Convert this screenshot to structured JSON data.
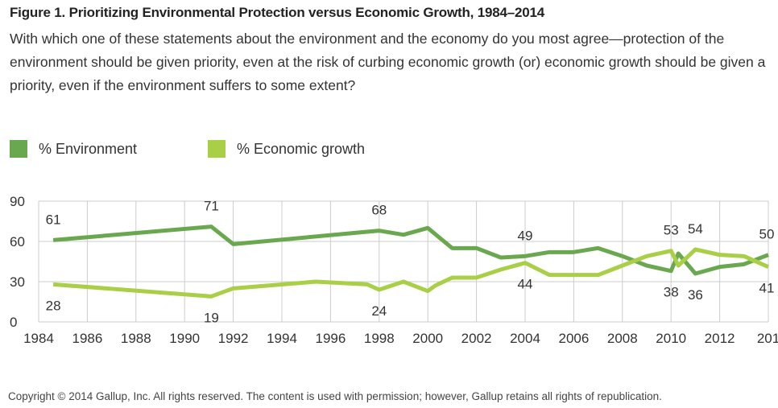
{
  "title": "Figure 1. Prioritizing Environmental Protection versus Economic Growth, 1984–2014",
  "question": "With which one of these statements about the environment and the economy do you most agree—protection of the environment should be given priority, even at the risk of curbing economic growth (or) economic growth should be given a priority, even if the environment suffers to some extent?",
  "copyright": "Copyright © 2014 Gallup, Inc. All rights reserved. The content is used with permission; however, Gallup retains all rights of republication.",
  "chart_data": {
    "type": "line",
    "xlim": [
      1984,
      2014
    ],
    "ylim": [
      0,
      90
    ],
    "x_ticks": [
      "1984",
      "1986",
      "1988",
      "1990",
      "1992",
      "1994",
      "1996",
      "1998",
      "2000",
      "2002",
      "2004",
      "2006",
      "2008",
      "2010",
      "2012",
      "201"
    ],
    "y_ticks": [
      "0",
      "30",
      "60",
      "90"
    ],
    "grid": true,
    "legend": "top-left",
    "series": [
      {
        "name": "% Environment",
        "color": "#6aa84f",
        "x": [
          1984.6,
          1991.1,
          1992,
          1998,
          1999,
          2000,
          2001,
          2002,
          2003,
          2004,
          2005,
          2006,
          2007,
          2008,
          2009,
          2010,
          2010.3,
          2011,
          2012,
          2013,
          2014
        ],
        "y": [
          61,
          71,
          58,
          68,
          65,
          70,
          55,
          55,
          48,
          49,
          52,
          52,
          55,
          49,
          42,
          38,
          51,
          36,
          41,
          43,
          50
        ],
        "labels": [
          {
            "x": 1984.6,
            "y": 61,
            "text": "61",
            "pos": "above"
          },
          {
            "x": 1991.1,
            "y": 71,
            "text": "71",
            "pos": "above"
          },
          {
            "x": 1998,
            "y": 68,
            "text": "68",
            "pos": "above"
          },
          {
            "x": 2004,
            "y": 49,
            "text": "49",
            "pos": "above"
          },
          {
            "x": 2010,
            "y": 38,
            "text": "38",
            "pos": "below"
          },
          {
            "x": 2011,
            "y": 36,
            "text": "36",
            "pos": "below"
          },
          {
            "x": 2014,
            "y": 50,
            "text": "50",
            "pos": "above"
          }
        ]
      },
      {
        "name": "% Economic growth",
        "color": "#a9cf46",
        "x": [
          1984.6,
          1991.1,
          1992,
          1995.4,
          1997.5,
          1998,
          1999,
          2000,
          2000.3,
          2001,
          2002,
          2003,
          2004,
          2005,
          2006,
          2007,
          2008,
          2009,
          2010,
          2010.3,
          2011,
          2012,
          2013,
          2014
        ],
        "y": [
          28,
          19,
          25,
          30,
          28,
          24,
          30,
          23,
          27,
          33,
          33,
          39,
          44,
          35,
          35,
          35,
          42,
          49,
          53,
          42,
          54,
          50,
          49,
          41
        ],
        "labels": [
          {
            "x": 1984.6,
            "y": 28,
            "text": "28",
            "pos": "below"
          },
          {
            "x": 1991.1,
            "y": 19,
            "text": "19",
            "pos": "below"
          },
          {
            "x": 1998,
            "y": 24,
            "text": "24",
            "pos": "below"
          },
          {
            "x": 2004,
            "y": 44,
            "text": "44",
            "pos": "below"
          },
          {
            "x": 2010,
            "y": 53,
            "text": "53",
            "pos": "above"
          },
          {
            "x": 2011,
            "y": 54,
            "text": "54",
            "pos": "above"
          },
          {
            "x": 2014,
            "y": 41,
            "text": "41",
            "pos": "below"
          }
        ]
      }
    ]
  }
}
